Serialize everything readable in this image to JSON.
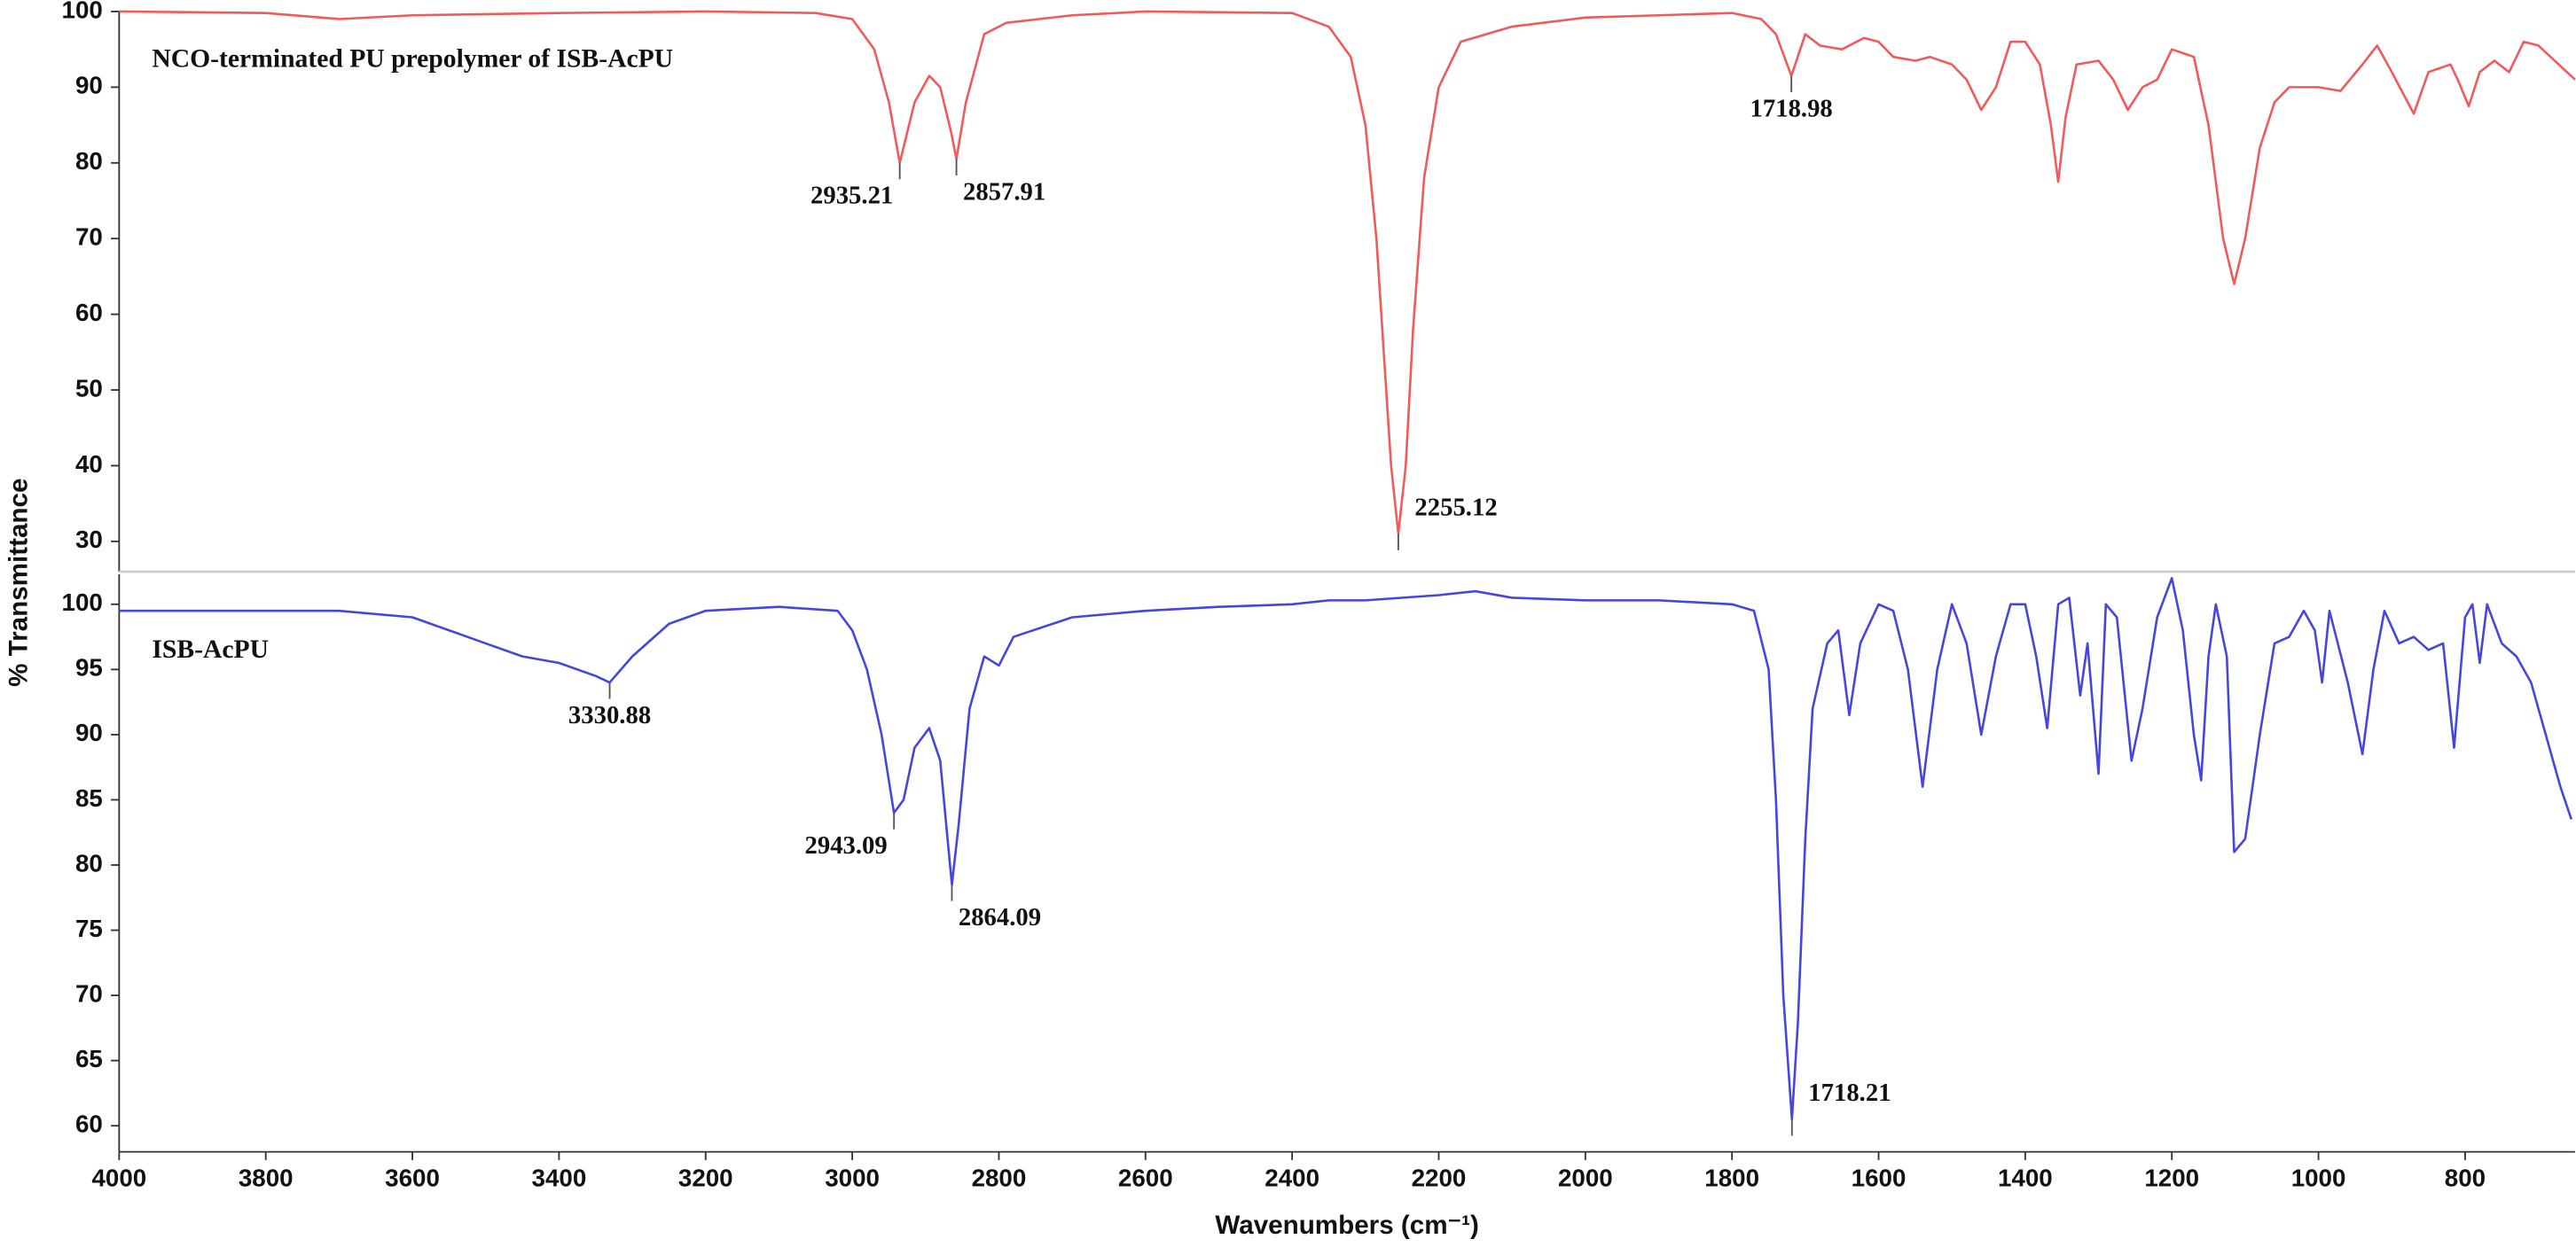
{
  "chart_data": [
    {
      "type": "line",
      "title": "NCO-terminated PU prepolymer of ISB-AcPU",
      "ylabel": "% Transmittance",
      "xlim": [
        4000,
        650
      ],
      "ylim": [
        26,
        100
      ],
      "yticks": [
        30,
        40,
        50,
        60,
        70,
        80,
        90,
        100
      ],
      "x": [
        4000,
        3800,
        3700,
        3600,
        3400,
        3200,
        3050,
        3000,
        2970,
        2950,
        2935.21,
        2915,
        2895,
        2880,
        2865,
        2857.91,
        2845,
        2820,
        2790,
        2700,
        2600,
        2400,
        2350,
        2320,
        2300,
        2285,
        2275,
        2265,
        2255.12,
        2245,
        2235,
        2220,
        2200,
        2170,
        2100,
        2000,
        1900,
        1800,
        1760,
        1740,
        1718.98,
        1700,
        1680,
        1650,
        1620,
        1600,
        1580,
        1550,
        1530,
        1500,
        1480,
        1460,
        1440,
        1420,
        1400,
        1380,
        1365,
        1355,
        1345,
        1330,
        1300,
        1280,
        1260,
        1240,
        1220,
        1200,
        1170,
        1150,
        1130,
        1115,
        1100,
        1080,
        1060,
        1040,
        1000,
        970,
        940,
        920,
        900,
        870,
        850,
        820,
        810,
        795,
        780,
        760,
        740,
        720,
        700,
        650
      ],
      "series": [
        {
          "color": "#f05a5a",
          "values": [
            100,
            99.8,
            99,
            99.5,
            99.8,
            100,
            99.8,
            99,
            95,
            88,
            80,
            88,
            91.5,
            90,
            84,
            80.5,
            88,
            97,
            98.5,
            99.5,
            100,
            99.8,
            98,
            94,
            85,
            70,
            55,
            40,
            31,
            40,
            58,
            78,
            90,
            96,
            98,
            99.2,
            99.5,
            99.8,
            99,
            97,
            91.5,
            97,
            95.5,
            95,
            96.5,
            96,
            94,
            93.5,
            94,
            93,
            91,
            87,
            90,
            96,
            96,
            93,
            85,
            77.5,
            86,
            93,
            93.5,
            91,
            87,
            90,
            91,
            95,
            94,
            85,
            70,
            64,
            70,
            82,
            88,
            90,
            90,
            89.5,
            93,
            95.5,
            92,
            86.5,
            92,
            93,
            91,
            87.5,
            92,
            93.5,
            92,
            96,
            95.5,
            91
          ]
        }
      ],
      "annotations": [
        {
          "label": "2935.21",
          "x": 2935.21,
          "y": 80
        },
        {
          "label": "2857.91",
          "x": 2857.91,
          "y": 80.5
        },
        {
          "label": "2255.12",
          "x": 2255.12,
          "y": 31
        },
        {
          "label": "1718.98",
          "x": 1718.98,
          "y": 91.5
        }
      ]
    },
    {
      "type": "line",
      "title": "ISB-AcPU",
      "xlabel": "Wavenumbers (cm⁻¹)",
      "xlim": [
        4000,
        650
      ],
      "xticks": [
        4000,
        3800,
        3600,
        3400,
        3200,
        3000,
        2800,
        2600,
        2400,
        2200,
        2000,
        1800,
        1600,
        1400,
        1200,
        1000,
        800
      ],
      "ylim": [
        58,
        102.3
      ],
      "yticks": [
        60,
        65,
        70,
        75,
        80,
        85,
        90,
        95,
        100
      ],
      "x": [
        4000,
        3800,
        3700,
        3600,
        3500,
        3450,
        3400,
        3350,
        3330.88,
        3300,
        3250,
        3200,
        3100,
        3020,
        3000,
        2980,
        2960,
        2943.09,
        2930,
        2915,
        2895,
        2880,
        2870,
        2864.09,
        2855,
        2840,
        2820,
        2800,
        2780,
        2700,
        2600,
        2500,
        2400,
        2350,
        2300,
        2200,
        2150,
        2100,
        2000,
        1900,
        1800,
        1770,
        1750,
        1740,
        1730,
        1718.21,
        1710,
        1700,
        1690,
        1670,
        1655,
        1640,
        1625,
        1600,
        1580,
        1560,
        1540,
        1520,
        1500,
        1480,
        1460,
        1440,
        1420,
        1400,
        1385,
        1370,
        1355,
        1340,
        1325,
        1315,
        1300,
        1290,
        1275,
        1255,
        1240,
        1220,
        1200,
        1185,
        1170,
        1160,
        1150,
        1140,
        1125,
        1115,
        1100,
        1080,
        1060,
        1040,
        1020,
        1005,
        995,
        985,
        960,
        940,
        925,
        910,
        890,
        870,
        850,
        830,
        815,
        800,
        790,
        780,
        770,
        750,
        730,
        710,
        690,
        670,
        655
      ],
      "series": [
        {
          "color": "#4545e0",
          "values": [
            99.5,
            99.5,
            99.5,
            99,
            97,
            96,
            95.5,
            94.5,
            94,
            96,
            98.5,
            99.5,
            99.8,
            99.5,
            98,
            95,
            90,
            84,
            85,
            89,
            90.5,
            88,
            82,
            78.5,
            83,
            92,
            96,
            95.3,
            97.5,
            99,
            99.5,
            99.8,
            100,
            100.3,
            100.3,
            100.7,
            101,
            100.5,
            100.3,
            100.3,
            100,
            99.5,
            95,
            85,
            70,
            60.5,
            68,
            82,
            92,
            97,
            98,
            91.5,
            97,
            100,
            99.5,
            95,
            86,
            95,
            100,
            97,
            90,
            96,
            100,
            100,
            96,
            90.5,
            100,
            100.5,
            93,
            97,
            87,
            100,
            99,
            88,
            92,
            99,
            102,
            98,
            90,
            86.5,
            96,
            100,
            96,
            81,
            82,
            90,
            97,
            97.5,
            99.5,
            98,
            94,
            99.5,
            94,
            88.5,
            95,
            99.5,
            97,
            97.5,
            96.5,
            97,
            89,
            99,
            100,
            95.5,
            100,
            97,
            96,
            94,
            90,
            86,
            83.5
          ]
        }
      ],
      "annotations": [
        {
          "label": "3330.88",
          "x": 3330.88,
          "y": 94
        },
        {
          "label": "2943.09",
          "x": 2943.09,
          "y": 84
        },
        {
          "label": "2864.09",
          "x": 2864.09,
          "y": 78.5
        },
        {
          "label": "1718.21",
          "x": 1718.21,
          "y": 60.5
        }
      ]
    }
  ]
}
